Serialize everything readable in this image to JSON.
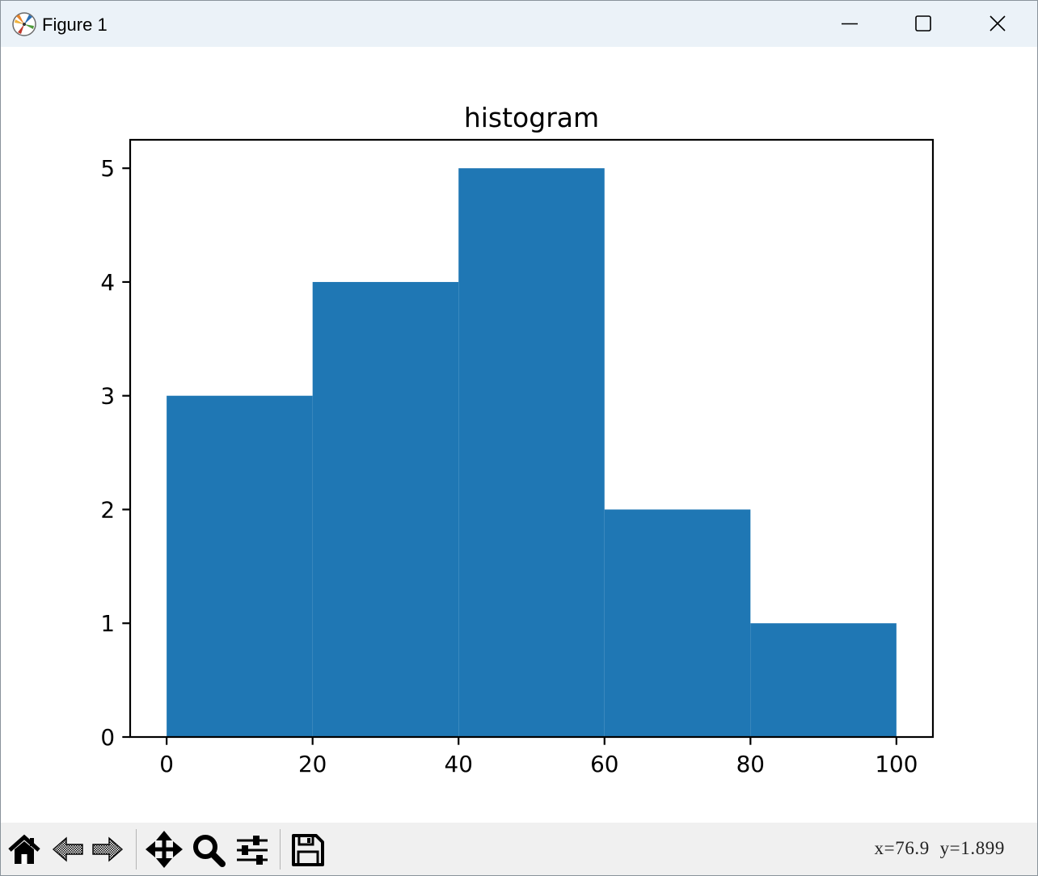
{
  "window": {
    "title": "Figure 1",
    "app_icon": "matplotlib-icon",
    "minimize_icon": "minimize-icon",
    "maximize_icon": "maximize-icon",
    "close_icon": "close-icon"
  },
  "chart_data": {
    "type": "bar",
    "title": "histogram",
    "bin_edges": [
      0,
      20,
      40,
      60,
      80,
      100
    ],
    "values": [
      3,
      4,
      5,
      2,
      1
    ],
    "xlim": [
      -5,
      105
    ],
    "ylim": [
      0,
      5.25
    ],
    "xticks": [
      0,
      20,
      40,
      60,
      80,
      100
    ],
    "xtick_labels": [
      "0",
      "20",
      "40",
      "60",
      "80",
      "100"
    ],
    "yticks": [
      0,
      1,
      2,
      3,
      4,
      5
    ],
    "ytick_labels": [
      "0",
      "1",
      "2",
      "3",
      "4",
      "5"
    ],
    "bar_color": "#1f77b4",
    "grid": false,
    "legend": "none"
  },
  "toolbar": {
    "buttons": [
      {
        "name": "home-button",
        "icon": "home-icon"
      },
      {
        "name": "back-button",
        "icon": "back-arrow-icon"
      },
      {
        "name": "forward-button",
        "icon": "forward-arrow-icon"
      },
      {
        "name": "pan-button",
        "icon": "move-icon"
      },
      {
        "name": "zoom-button",
        "icon": "magnifier-icon"
      },
      {
        "name": "configure-subplots-button",
        "icon": "sliders-icon"
      },
      {
        "name": "save-button",
        "icon": "floppy-disk-icon"
      }
    ],
    "coords": "x=76.9  y=1.899"
  }
}
